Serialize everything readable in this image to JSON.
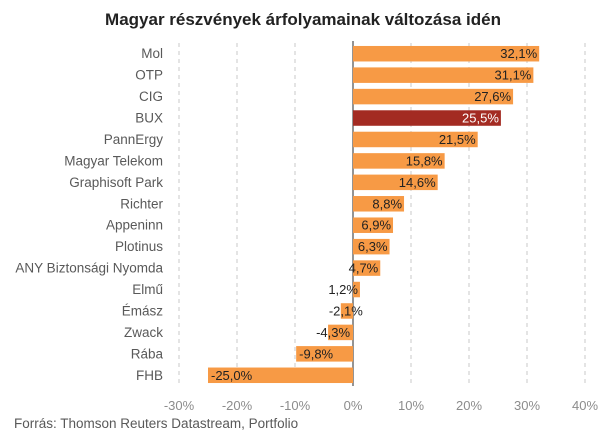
{
  "chart_data": {
    "type": "bar",
    "orientation": "horizontal",
    "title": "Magyar részvények árfolyamainak változása idén",
    "categories": [
      "Mol",
      "OTP",
      "CIG",
      "BUX",
      "PannErgy",
      "Magyar Telekom",
      "Graphisoft Park",
      "Richter",
      "Appeninn",
      "Plotinus",
      "ANY Biztonsági Nyomda",
      "Elmű",
      "Émász",
      "Zwack",
      "Rába",
      "FHB"
    ],
    "values": [
      32.1,
      31.1,
      27.6,
      25.5,
      21.5,
      15.8,
      14.6,
      8.8,
      6.9,
      6.3,
      4.7,
      1.2,
      -2.1,
      -4.3,
      -9.8,
      -25.0
    ],
    "data_labels": [
      "32,1%",
      "31,1%",
      "27,6%",
      "25,5%",
      "21,5%",
      "15,8%",
      "14,6%",
      "8,8%",
      "6,9%",
      "6,3%",
      "4,7%",
      "1,2%",
      "-2,1%",
      "-4,3%",
      "-9,8%",
      "-25,0%"
    ],
    "xlim": [
      -30,
      40
    ],
    "ticks": [
      -30,
      -20,
      -10,
      0,
      10,
      20,
      30,
      40
    ],
    "tick_labels": [
      "-30%",
      "-20%",
      "-10%",
      "0%",
      "10%",
      "20%",
      "30%",
      "40%"
    ],
    "grid": "vertical-dashed",
    "highlight": "BUX",
    "colors": {
      "bar": "#f79a45",
      "highlight": "#a32b22",
      "grid": "#c8c8c8",
      "axis": "#4d4d4d"
    }
  },
  "source": "Forrás: Thomson Reuters Datastream, Portfolio"
}
